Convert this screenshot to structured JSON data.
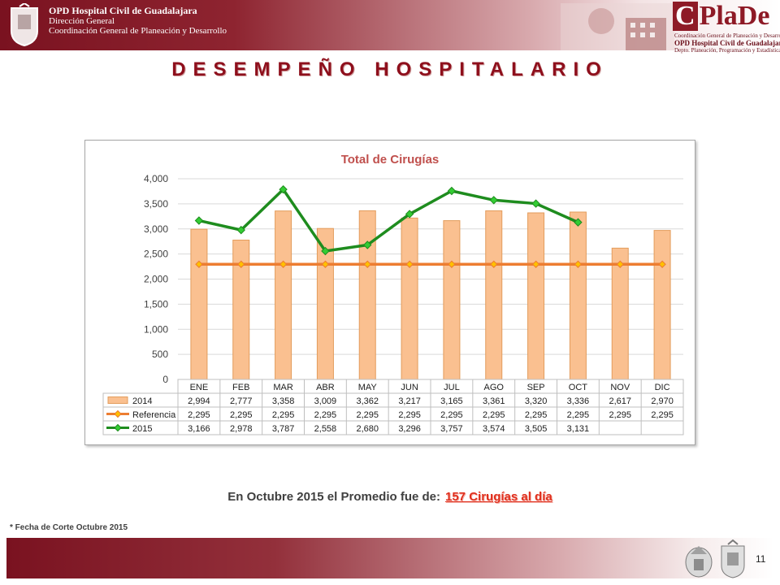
{
  "header": {
    "org_line1": "OPD Hospital Civil de Guadalajara",
    "org_line2": "Dirección General",
    "org_line3": "Coordinación General de Planeación y Desarrollo",
    "logo_text": "PlaDe",
    "logo_initial": "C",
    "logo_sub1": "Coordinación General de Planeación y Desarrollo",
    "logo_sub2": "OPD Hospital Civil de Guadalajara",
    "logo_sub3": "Depto. Planeación, Programación y Estadística"
  },
  "page_title": "DESEMPEÑO HOSPITALARIO",
  "chart_data": {
    "type": "bar",
    "title": "Total de Cirugías",
    "categories": [
      "ENE",
      "FEB",
      "MAR",
      "ABR",
      "MAY",
      "JUN",
      "JUL",
      "AGO",
      "SEP",
      "OCT",
      "NOV",
      "DIC"
    ],
    "ylim": [
      0,
      4000
    ],
    "yticks": [
      0,
      500,
      1000,
      1500,
      2000,
      2500,
      3000,
      3500,
      4000
    ],
    "ytick_labels": [
      "0",
      "500",
      "1,000",
      "1,500",
      "2,000",
      "2,500",
      "3,000",
      "3,500",
      "4,000"
    ],
    "grid": true,
    "legend": "data-table-below",
    "series": [
      {
        "name": "2014",
        "kind": "bar",
        "color": "#fac090",
        "stroke": "#e39c5c",
        "values": [
          2994,
          2777,
          3358,
          3009,
          3362,
          3217,
          3165,
          3361,
          3320,
          3336,
          2617,
          2970
        ],
        "labels": [
          "2,994",
          "2,777",
          "3,358",
          "3,009",
          "3,362",
          "3,217",
          "3,165",
          "3,361",
          "3,320",
          "3,336",
          "2,617",
          "2,970"
        ]
      },
      {
        "name": "Referencia",
        "kind": "line",
        "color": "#ed7d31",
        "marker_color": "#ffc000",
        "values": [
          2295,
          2295,
          2295,
          2295,
          2295,
          2295,
          2295,
          2295,
          2295,
          2295,
          2295,
          2295
        ],
        "labels": [
          "2,295",
          "2,295",
          "2,295",
          "2,295",
          "2,295",
          "2,295",
          "2,295",
          "2,295",
          "2,295",
          "2,295",
          "2,295",
          "2,295"
        ]
      },
      {
        "name": "2015",
        "kind": "line",
        "color": "#1e8c1e",
        "marker_color": "#33cc33",
        "values": [
          3166,
          2978,
          3787,
          2558,
          2680,
          3296,
          3757,
          3574,
          3505,
          3131,
          null,
          null
        ],
        "labels": [
          "3,166",
          "2,978",
          "3,787",
          "2,558",
          "2,680",
          "3,296",
          "3,757",
          "3,574",
          "3,505",
          "3,131",
          "",
          ""
        ]
      }
    ]
  },
  "summary": {
    "text": "En Octubre 2015 el Promedio fue de:",
    "highlight": "157 Cirugías al día"
  },
  "footnote": "* Fecha de Corte Octubre 2015",
  "page_number": "11"
}
